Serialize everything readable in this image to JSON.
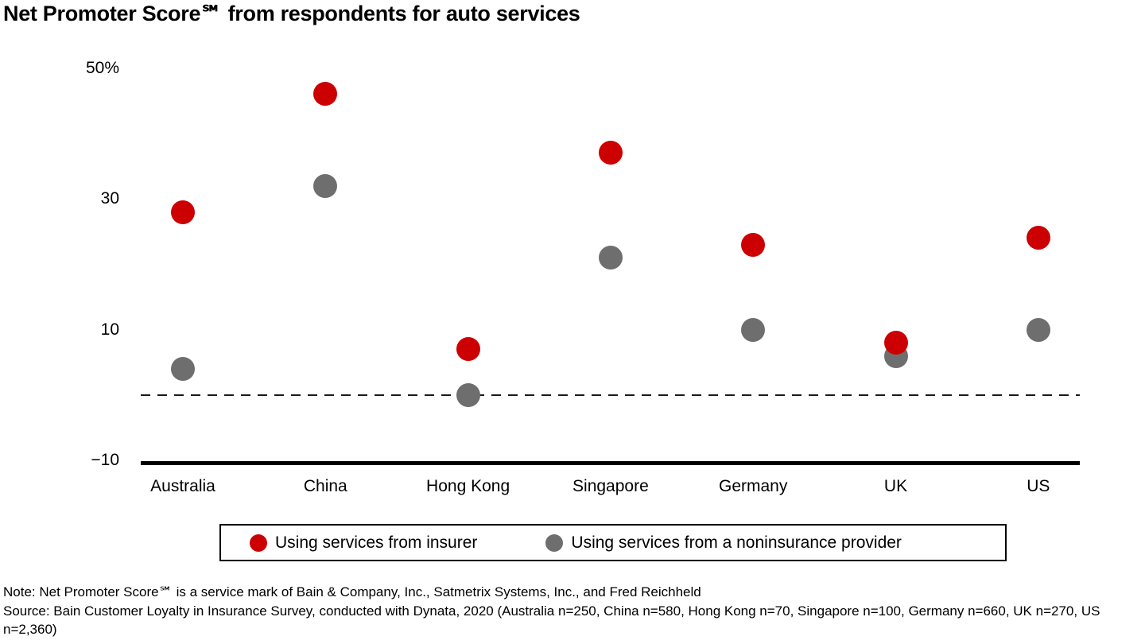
{
  "chart_data": {
    "type": "scatter",
    "title": "Net Promoter Score℠ from respondents for auto services",
    "categories": [
      "Australia",
      "China",
      "Hong Kong",
      "Singapore",
      "Germany",
      "UK",
      "US"
    ],
    "series": [
      {
        "name": "Using services from insurer",
        "color": "#cc0000",
        "values": [
          28,
          46,
          7,
          37,
          23,
          8,
          24
        ]
      },
      {
        "name": "Using services from a noninsurance provider",
        "color": "#6e6e6e",
        "values": [
          4,
          32,
          0,
          21,
          10,
          6,
          10
        ]
      }
    ],
    "y_axis": {
      "unit": "%",
      "ticks": [
        {
          "label": "50%",
          "value": 50
        },
        {
          "label": "30",
          "value": 30
        },
        {
          "label": "10",
          "value": 10
        },
        {
          "label": "−10",
          "value": -10
        }
      ],
      "range": [
        -10,
        50
      ]
    },
    "zero_line": "dashed",
    "grid": "off",
    "legend_position": "bottom"
  },
  "footer": {
    "note": "Note: Net Promoter Score℠ is a service mark of Bain & Company, Inc., Satmetrix Systems, Inc., and Fred Reichheld",
    "source": "Source: Bain Customer Loyalty in Insurance Survey, conducted with Dynata, 2020 (Australia n=250, China n=580, Hong Kong n=70, Singapore n=100, Germany n=660, UK n=270, US n=2,360)"
  }
}
